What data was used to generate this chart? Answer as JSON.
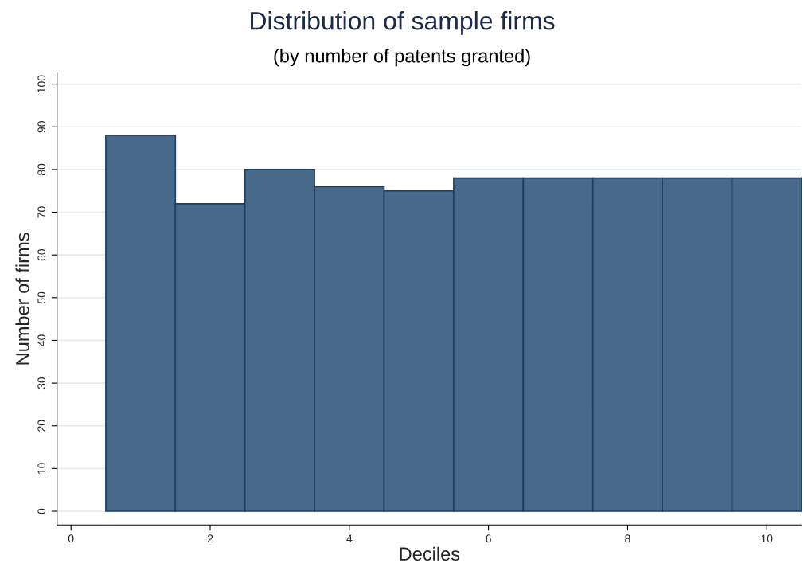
{
  "chart_data": {
    "type": "histogram",
    "title": "Distribution of sample firms",
    "subtitle": "(by number of patents granted)",
    "xlabel": "Deciles",
    "ylabel": "Number of firms",
    "bins": [
      0.5,
      1.5,
      2.5,
      3.5,
      4.5,
      5.5,
      6.5,
      7.5,
      8.5,
      9.5,
      10.5
    ],
    "values": [
      88,
      72,
      80,
      76,
      75,
      78,
      78,
      78,
      78,
      78
    ],
    "color": "#476a8a",
    "xlim": [
      -0.2,
      10.5
    ],
    "xticks": [
      0,
      2,
      4,
      6,
      8,
      10
    ],
    "ylim": [
      -3.2,
      102.6
    ],
    "yticks": [
      0,
      10,
      20,
      30,
      40,
      50,
      60,
      70,
      80,
      90,
      100
    ],
    "grid": "y",
    "legend": false
  }
}
